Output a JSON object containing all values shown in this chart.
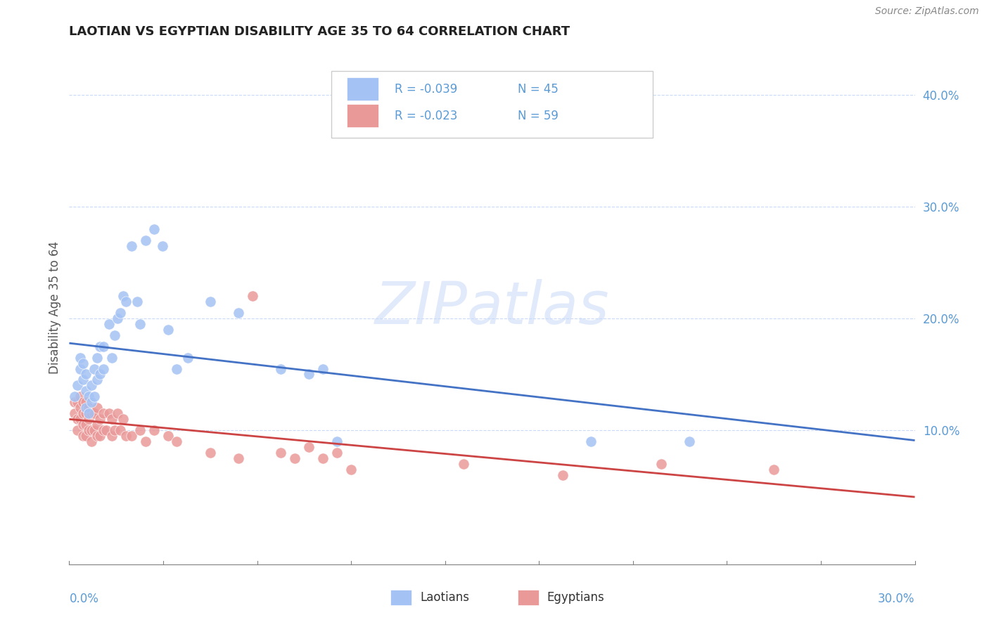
{
  "title": "LAOTIAN VS EGYPTIAN DISABILITY AGE 35 TO 64 CORRELATION CHART",
  "source": "Source: ZipAtlas.com",
  "ylabel": "Disability Age 35 to 64",
  "legend_r": [
    "R = -0.039",
    "R = -0.023"
  ],
  "legend_n": [
    "N = 45",
    "N = 59"
  ],
  "xlim": [
    0.0,
    0.3
  ],
  "ylim": [
    -0.02,
    0.44
  ],
  "yticks": [
    0.1,
    0.2,
    0.3,
    0.4
  ],
  "ytick_labels": [
    "10.0%",
    "20.0%",
    "30.0%",
    "40.0%"
  ],
  "watermark": "ZIPatlas",
  "blue_color": "#a4c2f4",
  "pink_color": "#ea9999",
  "blue_line_color": "#4472c4",
  "pink_line_color": "#cc4444",
  "laotian_x": [
    0.002,
    0.003,
    0.004,
    0.004,
    0.005,
    0.005,
    0.006,
    0.006,
    0.006,
    0.007,
    0.007,
    0.008,
    0.008,
    0.009,
    0.009,
    0.01,
    0.01,
    0.011,
    0.011,
    0.012,
    0.012,
    0.014,
    0.015,
    0.016,
    0.017,
    0.018,
    0.019,
    0.02,
    0.022,
    0.024,
    0.025,
    0.027,
    0.03,
    0.033,
    0.035,
    0.038,
    0.042,
    0.05,
    0.06,
    0.075,
    0.085,
    0.09,
    0.095,
    0.185,
    0.22
  ],
  "laotian_y": [
    0.13,
    0.14,
    0.155,
    0.165,
    0.145,
    0.16,
    0.12,
    0.135,
    0.15,
    0.115,
    0.13,
    0.125,
    0.14,
    0.13,
    0.155,
    0.145,
    0.165,
    0.15,
    0.175,
    0.155,
    0.175,
    0.195,
    0.165,
    0.185,
    0.2,
    0.205,
    0.22,
    0.215,
    0.265,
    0.215,
    0.195,
    0.27,
    0.28,
    0.265,
    0.19,
    0.155,
    0.165,
    0.215,
    0.205,
    0.155,
    0.15,
    0.155,
    0.09,
    0.09,
    0.09
  ],
  "egyptian_x": [
    0.002,
    0.002,
    0.003,
    0.003,
    0.003,
    0.004,
    0.004,
    0.004,
    0.005,
    0.005,
    0.005,
    0.005,
    0.006,
    0.006,
    0.006,
    0.006,
    0.007,
    0.007,
    0.007,
    0.008,
    0.008,
    0.008,
    0.009,
    0.009,
    0.01,
    0.01,
    0.01,
    0.011,
    0.011,
    0.012,
    0.012,
    0.013,
    0.014,
    0.015,
    0.015,
    0.016,
    0.017,
    0.018,
    0.019,
    0.02,
    0.022,
    0.025,
    0.027,
    0.03,
    0.035,
    0.038,
    0.05,
    0.06,
    0.065,
    0.075,
    0.08,
    0.085,
    0.09,
    0.095,
    0.1,
    0.14,
    0.175,
    0.21,
    0.25
  ],
  "egyptian_y": [
    0.115,
    0.125,
    0.1,
    0.11,
    0.125,
    0.11,
    0.12,
    0.13,
    0.095,
    0.105,
    0.115,
    0.125,
    0.095,
    0.105,
    0.115,
    0.125,
    0.1,
    0.11,
    0.12,
    0.09,
    0.1,
    0.115,
    0.1,
    0.115,
    0.095,
    0.105,
    0.12,
    0.095,
    0.11,
    0.1,
    0.115,
    0.1,
    0.115,
    0.095,
    0.11,
    0.1,
    0.115,
    0.1,
    0.11,
    0.095,
    0.095,
    0.1,
    0.09,
    0.1,
    0.095,
    0.09,
    0.08,
    0.075,
    0.22,
    0.08,
    0.075,
    0.085,
    0.075,
    0.08,
    0.065,
    0.07,
    0.06,
    0.07,
    0.065
  ]
}
